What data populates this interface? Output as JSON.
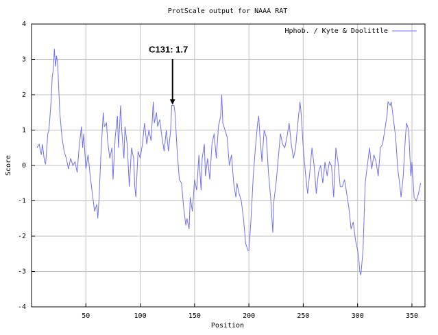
{
  "chart_data": {
    "type": "line",
    "title": "ProtScale output for NAAA RAT",
    "x_label": "Position",
    "y_label": "Score",
    "xlim": [
      0,
      362
    ],
    "ylim": [
      -4,
      4
    ],
    "xticks": [
      50,
      100,
      150,
      200,
      250,
      300,
      350
    ],
    "yticks": [
      -4,
      -3,
      -2,
      -1,
      0,
      1,
      2,
      3,
      4
    ],
    "grid": true,
    "legend_position": "top-right",
    "annotation": {
      "text": "C131: 1.7",
      "x": 131,
      "y": 1.7
    },
    "x": [
      5,
      7,
      9,
      10,
      12,
      13,
      15,
      16,
      18,
      19,
      20,
      21,
      22,
      23,
      24,
      25,
      26,
      28,
      30,
      32,
      34,
      36,
      38,
      40,
      42,
      44,
      46,
      47,
      48,
      50,
      52,
      54,
      56,
      58,
      60,
      61,
      62,
      64,
      66,
      67,
      69,
      70,
      72,
      74,
      75,
      77,
      79,
      80,
      82,
      83,
      85,
      86,
      88,
      89,
      90,
      92,
      94,
      95,
      96,
      98,
      100,
      102,
      104,
      106,
      108,
      110,
      112,
      113,
      115,
      116,
      118,
      120,
      122,
      124,
      126,
      128,
      129,
      130,
      131,
      132,
      134,
      136,
      138,
      140,
      142,
      143,
      145,
      146,
      148,
      150,
      152,
      154,
      156,
      157,
      159,
      160,
      162,
      164,
      166,
      168,
      170,
      172,
      174,
      175,
      176,
      178,
      180,
      182,
      184,
      186,
      188,
      189,
      191,
      193,
      195,
      197,
      199,
      200,
      202,
      204,
      206,
      208,
      209,
      210,
      212,
      214,
      216,
      218,
      220,
      222,
      223,
      225,
      227,
      229,
      231,
      233,
      235,
      237,
      239,
      241,
      243,
      245,
      247,
      248,
      250,
      252,
      254,
      256,
      258,
      260,
      262,
      264,
      266,
      268,
      270,
      272,
      274,
      276,
      278,
      280,
      282,
      284,
      286,
      288,
      290,
      292,
      294,
      296,
      298,
      300,
      301,
      302,
      303,
      305,
      307,
      309,
      311,
      313,
      315,
      317,
      319,
      321,
      323,
      325,
      327,
      328,
      330,
      331,
      333,
      335,
      337,
      339,
      340,
      342,
      344,
      345,
      347,
      349,
      350,
      352,
      354,
      356,
      358
    ],
    "series": [
      {
        "name": "Hphob. / Kyte & Doolittle",
        "color": "#6f6ff0",
        "values": [
          0.5,
          0.6,
          0.3,
          0.6,
          0.1,
          0.05,
          0.9,
          1.0,
          1.8,
          2.5,
          2.7,
          3.3,
          2.8,
          3.1,
          2.9,
          2.2,
          1.5,
          0.8,
          0.4,
          0.2,
          -0.1,
          0.2,
          0.0,
          0.1,
          -0.2,
          0.6,
          1.1,
          0.5,
          0.9,
          -0.1,
          0.3,
          -0.3,
          -0.8,
          -1.3,
          -1.1,
          -1.5,
          -1.0,
          0.4,
          1.5,
          1.1,
          1.2,
          0.7,
          0.2,
          0.5,
          -0.4,
          0.8,
          1.4,
          0.5,
          1.7,
          1.0,
          0.2,
          1.1,
          0.6,
          0.0,
          -0.6,
          0.5,
          0.2,
          -0.6,
          -0.9,
          0.4,
          0.2,
          0.6,
          1.2,
          0.6,
          1.0,
          0.7,
          1.8,
          1.2,
          1.5,
          1.1,
          1.3,
          0.8,
          0.4,
          1.0,
          0.4,
          1.0,
          1.7,
          1.7,
          1.7,
          1.5,
          0.4,
          -0.4,
          -0.5,
          -1.2,
          -1.7,
          -1.5,
          -1.8,
          -0.9,
          -1.3,
          -0.4,
          -0.7,
          0.3,
          -0.7,
          0.2,
          0.6,
          -0.3,
          0.2,
          -0.4,
          0.6,
          0.9,
          0.2,
          1.1,
          1.4,
          2.0,
          1.2,
          1.0,
          0.8,
          0.0,
          0.3,
          -0.5,
          -0.9,
          -0.5,
          -0.8,
          -1.0,
          -1.5,
          -2.2,
          -2.4,
          -2.4,
          -1.5,
          -0.3,
          0.5,
          1.2,
          1.4,
          0.9,
          0.1,
          1.0,
          0.8,
          -0.2,
          -0.9,
          -1.9,
          -1.0,
          -0.5,
          0.2,
          0.9,
          0.6,
          0.5,
          0.8,
          1.2,
          0.6,
          0.2,
          0.5,
          1.2,
          1.8,
          1.5,
          0.5,
          -0.2,
          -0.8,
          -0.2,
          0.5,
          0.0,
          -0.8,
          -0.2,
          0.0,
          -0.5,
          0.1,
          -0.3,
          0.1,
          0.0,
          -0.9,
          0.5,
          0.1,
          -0.6,
          -0.6,
          -0.4,
          -0.8,
          -1.2,
          -1.8,
          -1.6,
          -2.1,
          -2.4,
          -2.6,
          -3.0,
          -3.1,
          -2.4,
          -0.5,
          0.0,
          0.5,
          -0.1,
          0.3,
          0.1,
          -0.3,
          0.5,
          0.6,
          1.0,
          1.4,
          1.8,
          1.7,
          1.8,
          1.3,
          0.8,
          -0.1,
          -0.6,
          -0.9,
          -0.3,
          0.8,
          1.2,
          1.0,
          -0.3,
          0.1,
          -0.9,
          -1.0,
          -0.8,
          -0.5
        ]
      }
    ]
  }
}
